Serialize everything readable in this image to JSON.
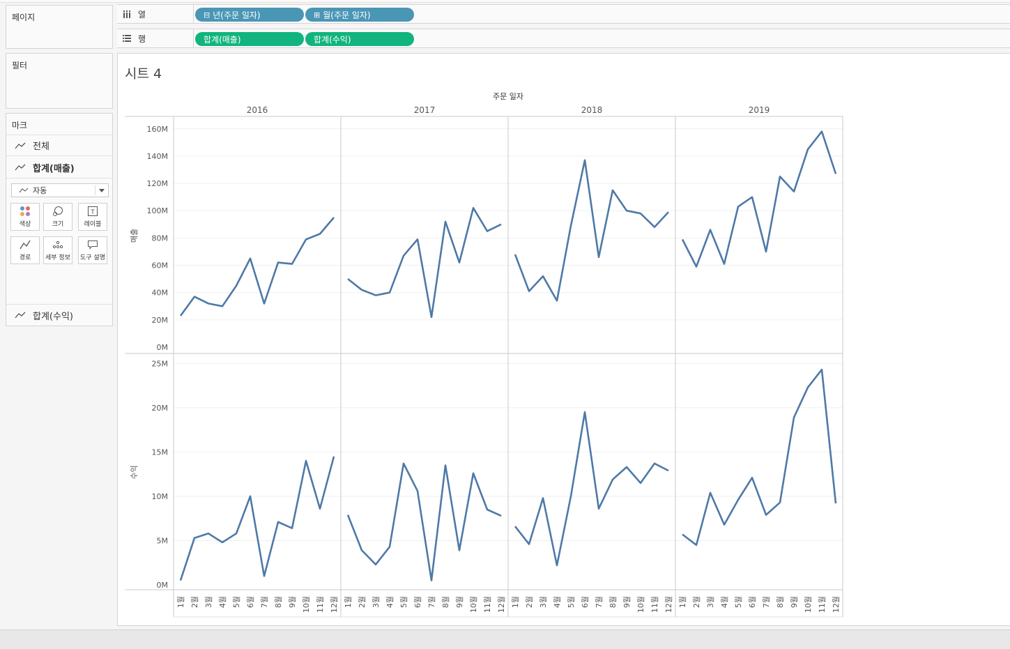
{
  "left": {
    "pages_label": "페이지",
    "filters_label": "필터",
    "marks_label": "마크",
    "mark_all": "전체",
    "mark_sales": "합계(매출)",
    "mark_type": "자동",
    "mark_buttons": [
      "색상",
      "크기",
      "레이블",
      "경로",
      "세부 정보",
      "도구 설명"
    ],
    "mark_profit": "합계(수익)"
  },
  "shelves": {
    "columns_label": "열",
    "rows_label": "행",
    "column_pills": [
      "년(주문 일자)",
      "월(주문 일자)"
    ],
    "row_pills": [
      "합계(매출)",
      "합계(수익)"
    ]
  },
  "sheet": {
    "title": "시트 4",
    "header": "주문 일자",
    "years": [
      "2016",
      "2017",
      "2018",
      "2019"
    ],
    "months": [
      "1월",
      "2월",
      "3월",
      "4월",
      "5월",
      "6월",
      "7월",
      "8월",
      "9월",
      "10월",
      "11월",
      "12월"
    ]
  },
  "chart_data": [
    {
      "type": "line",
      "ylabel": "매출",
      "yticks": [
        "0M",
        "20M",
        "40M",
        "60M",
        "80M",
        "100M",
        "120M",
        "140M",
        "160M"
      ],
      "ylim": [
        0,
        165
      ],
      "unit": "M",
      "color": "#4e79a7",
      "series": [
        {
          "year": "2016",
          "values": [
            23,
            37,
            32,
            30,
            45,
            65,
            32,
            62,
            61,
            79,
            83,
            95
          ]
        },
        {
          "year": "2017",
          "values": [
            50,
            42,
            38,
            40,
            67,
            79,
            22,
            92,
            62,
            102,
            85,
            90
          ]
        },
        {
          "year": "2018",
          "values": [
            68,
            41,
            52,
            34,
            89,
            137,
            66,
            115,
            100,
            98,
            88,
            99
          ]
        },
        {
          "year": "2019",
          "values": [
            79,
            59,
            86,
            61,
            103,
            110,
            70,
            125,
            114,
            145,
            158,
            127
          ]
        }
      ]
    },
    {
      "type": "line",
      "ylabel": "수익",
      "yticks": [
        "0M",
        "5M",
        "10M",
        "15M",
        "20M",
        "25M"
      ],
      "ylim": [
        0,
        25.5
      ],
      "unit": "M",
      "color": "#4e79a7",
      "series": [
        {
          "year": "2016",
          "values": [
            0.5,
            5.3,
            5.8,
            4.8,
            5.8,
            10.0,
            1.0,
            7.1,
            6.4,
            14.0,
            8.6,
            14.5
          ]
        },
        {
          "year": "2017",
          "values": [
            7.9,
            3.9,
            2.3,
            4.3,
            13.7,
            10.6,
            0.5,
            13.5,
            3.9,
            12.6,
            8.5,
            7.8
          ]
        },
        {
          "year": "2018",
          "values": [
            6.6,
            4.6,
            9.8,
            2.2,
            10.0,
            19.5,
            8.6,
            11.9,
            13.3,
            11.5,
            13.7,
            12.9
          ]
        },
        {
          "year": "2019",
          "values": [
            5.7,
            4.5,
            10.4,
            6.8,
            9.6,
            12.1,
            7.9,
            9.3,
            18.9,
            22.3,
            24.3,
            9.2
          ]
        }
      ]
    }
  ]
}
